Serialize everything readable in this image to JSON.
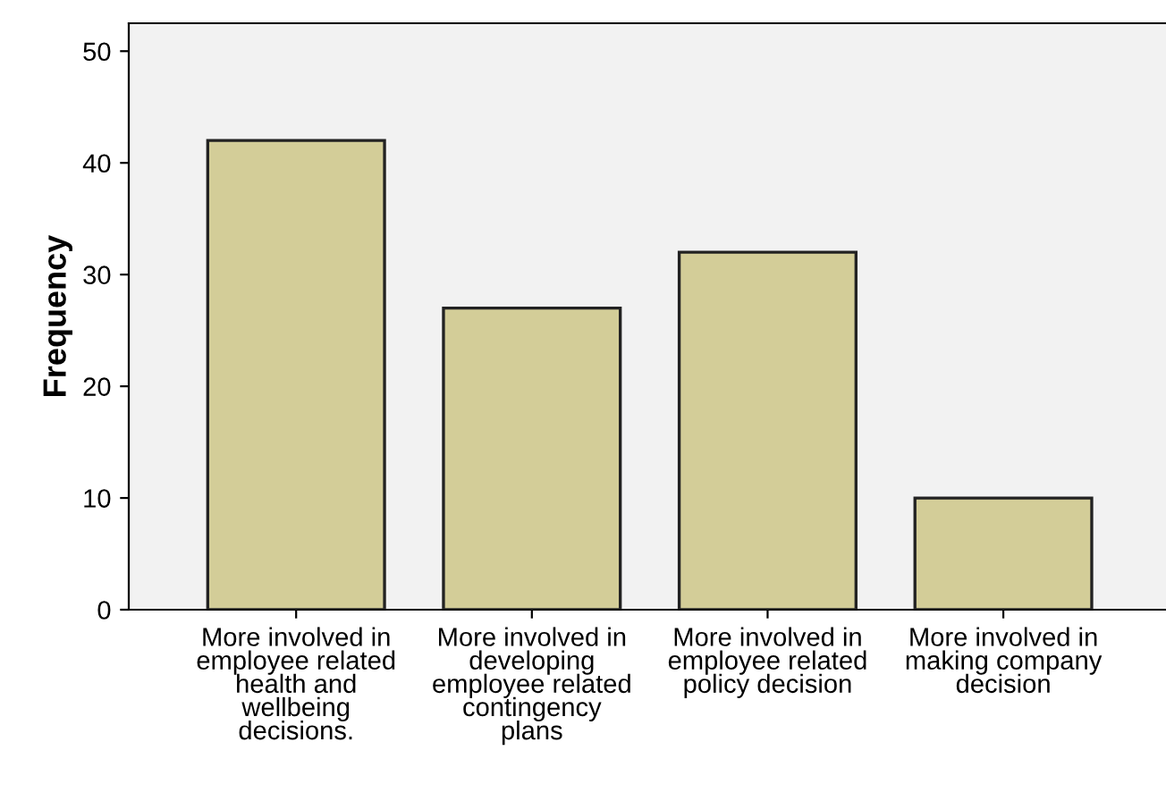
{
  "chart_data": {
    "type": "bar",
    "ylabel": "Frequency",
    "categories": [
      "More involved in\nemployee related\nhealth and\nwellbeing\ndecisions.",
      "More involved in\ndeveloping\nemployee related\ncontingency\nplans",
      "More involved in\nemployee related\npolicy decision",
      "More involved in\nmaking company\ndecision"
    ],
    "values": [
      42,
      27,
      32,
      10
    ],
    "color": "#d3cd98",
    "ylim": [
      0,
      52.5
    ],
    "yticks": [
      0,
      10,
      20,
      30,
      40,
      50
    ],
    "grid": false
  }
}
